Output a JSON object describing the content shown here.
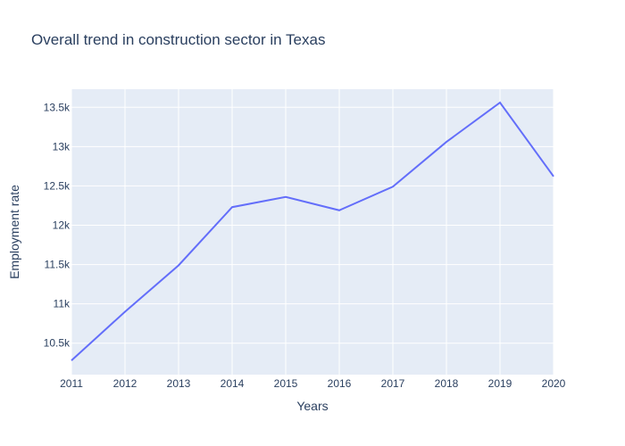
{
  "chart_data": {
    "type": "line",
    "title": "Overall trend in construction sector in Texas",
    "xlabel": "Years",
    "ylabel": "Employment rate",
    "x": [
      2011,
      2012,
      2013,
      2014,
      2015,
      2016,
      2017,
      2018,
      2019,
      2020
    ],
    "series": [
      {
        "values": [
          10280,
          10900,
          11490,
          12230,
          12360,
          12190,
          12490,
          13060,
          13560,
          12620
        ]
      }
    ],
    "xlim": [
      2011,
      2020
    ],
    "ylim": [
      10100,
      13730
    ],
    "x_ticks": [
      "2011",
      "2012",
      "2013",
      "2014",
      "2015",
      "2016",
      "2017",
      "2018",
      "2019",
      "2020"
    ],
    "y_ticks": [
      10500,
      11000,
      11500,
      12000,
      12500,
      13000,
      13500
    ],
    "y_tick_labels": [
      "10.5k",
      "11k",
      "11.5k",
      "12k",
      "12.5k",
      "13k",
      "13.5k"
    ],
    "grid": true,
    "colors": {
      "plot_background": "#e5ecf6",
      "grid": "#ffffff",
      "line": "#636efa",
      "text": "#2a3f5f"
    }
  }
}
